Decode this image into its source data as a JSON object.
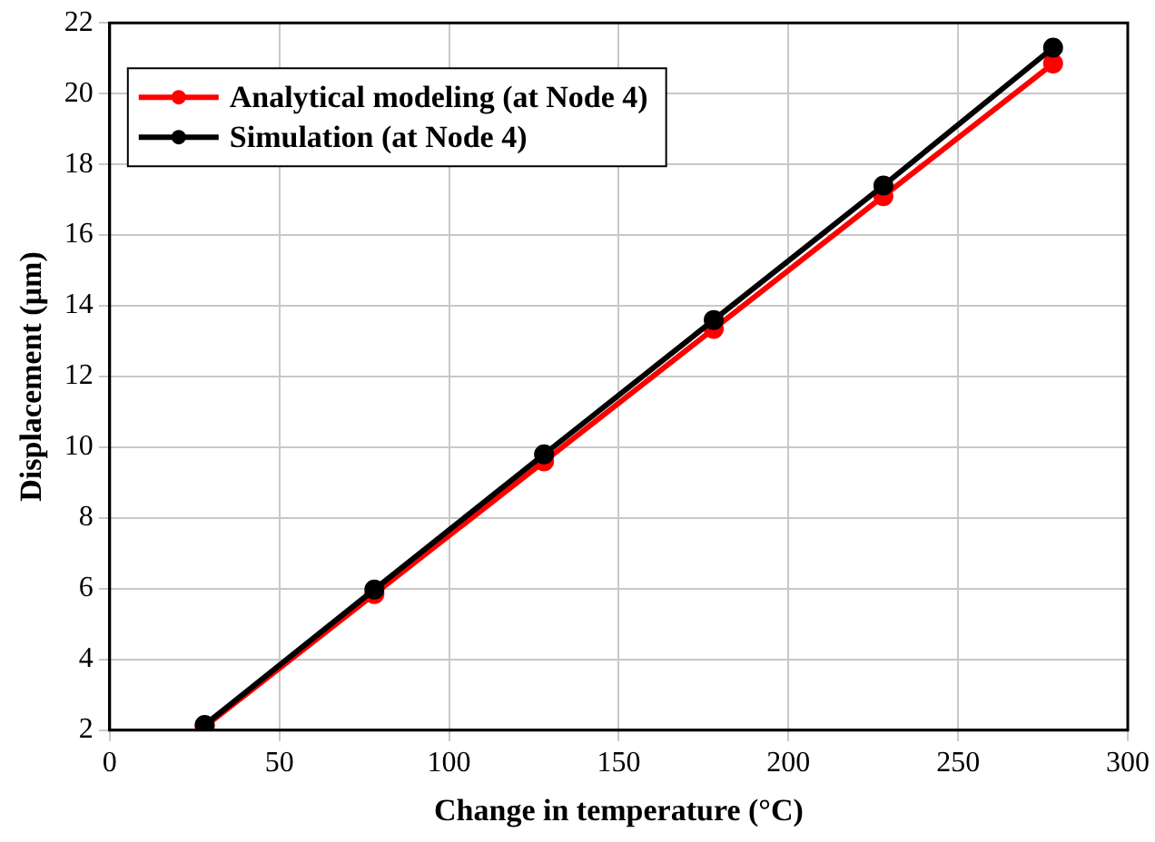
{
  "chart_data": {
    "type": "line",
    "xlabel": "Change in temperature (°C)",
    "ylabel": "Displacement (µm)",
    "x": [
      28,
      78,
      128,
      178,
      228,
      278
    ],
    "series": [
      {
        "name": "Analytical modeling (at Node 4)",
        "color": "#ff0000",
        "values": [
          2.1,
          5.85,
          9.6,
          13.35,
          17.1,
          20.85
        ]
      },
      {
        "name": "Simulation (at Node 4)",
        "color": "#000000",
        "values": [
          2.15,
          5.98,
          9.8,
          13.6,
          17.4,
          21.3
        ]
      }
    ],
    "xlim": [
      0,
      300
    ],
    "xticks": [
      0,
      50,
      100,
      150,
      200,
      250,
      300
    ],
    "ylim": [
      2,
      22
    ],
    "yticks": [
      2,
      4,
      6,
      8,
      10,
      12,
      14,
      16,
      18,
      20,
      22
    ],
    "grid": true,
    "legend": "top left",
    "marker": "circle",
    "line_style": "solid"
  }
}
